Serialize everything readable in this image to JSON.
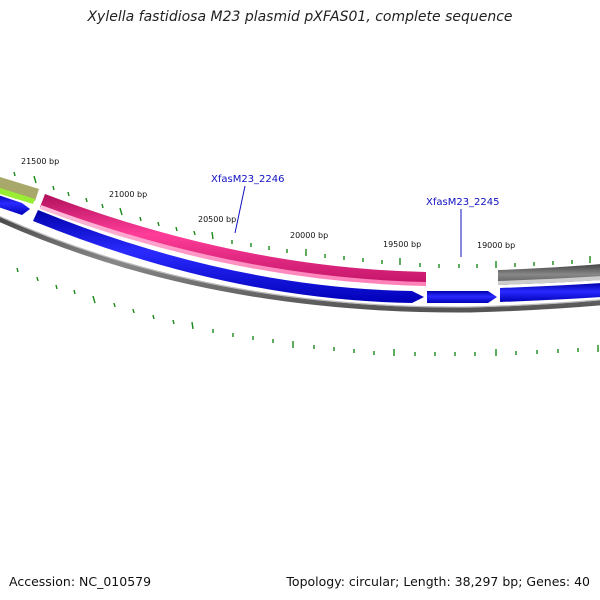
{
  "title": "Xylella fastidiosa M23 plasmid pXFAS01, complete sequence",
  "footer": {
    "accession": "Accession: NC_010579",
    "topology": "Topology: circular; Length: 38,297 bp; Genes: 40"
  },
  "tick_labels": [
    "21500 bp",
    "21000 bp",
    "20500 bp",
    "20000 bp",
    "19500 bp",
    "19000 bp"
  ],
  "gene_labels": [
    "XfasM23_2246",
    "XfasM23_2245"
  ],
  "colors": {
    "pink": "#ee1a7f",
    "blue": "#1010ee",
    "gray": "#666666",
    "olive": "#a8a86a",
    "lime": "#99ee33",
    "tick": "#1a8a1a",
    "label": "#1010c0"
  }
}
